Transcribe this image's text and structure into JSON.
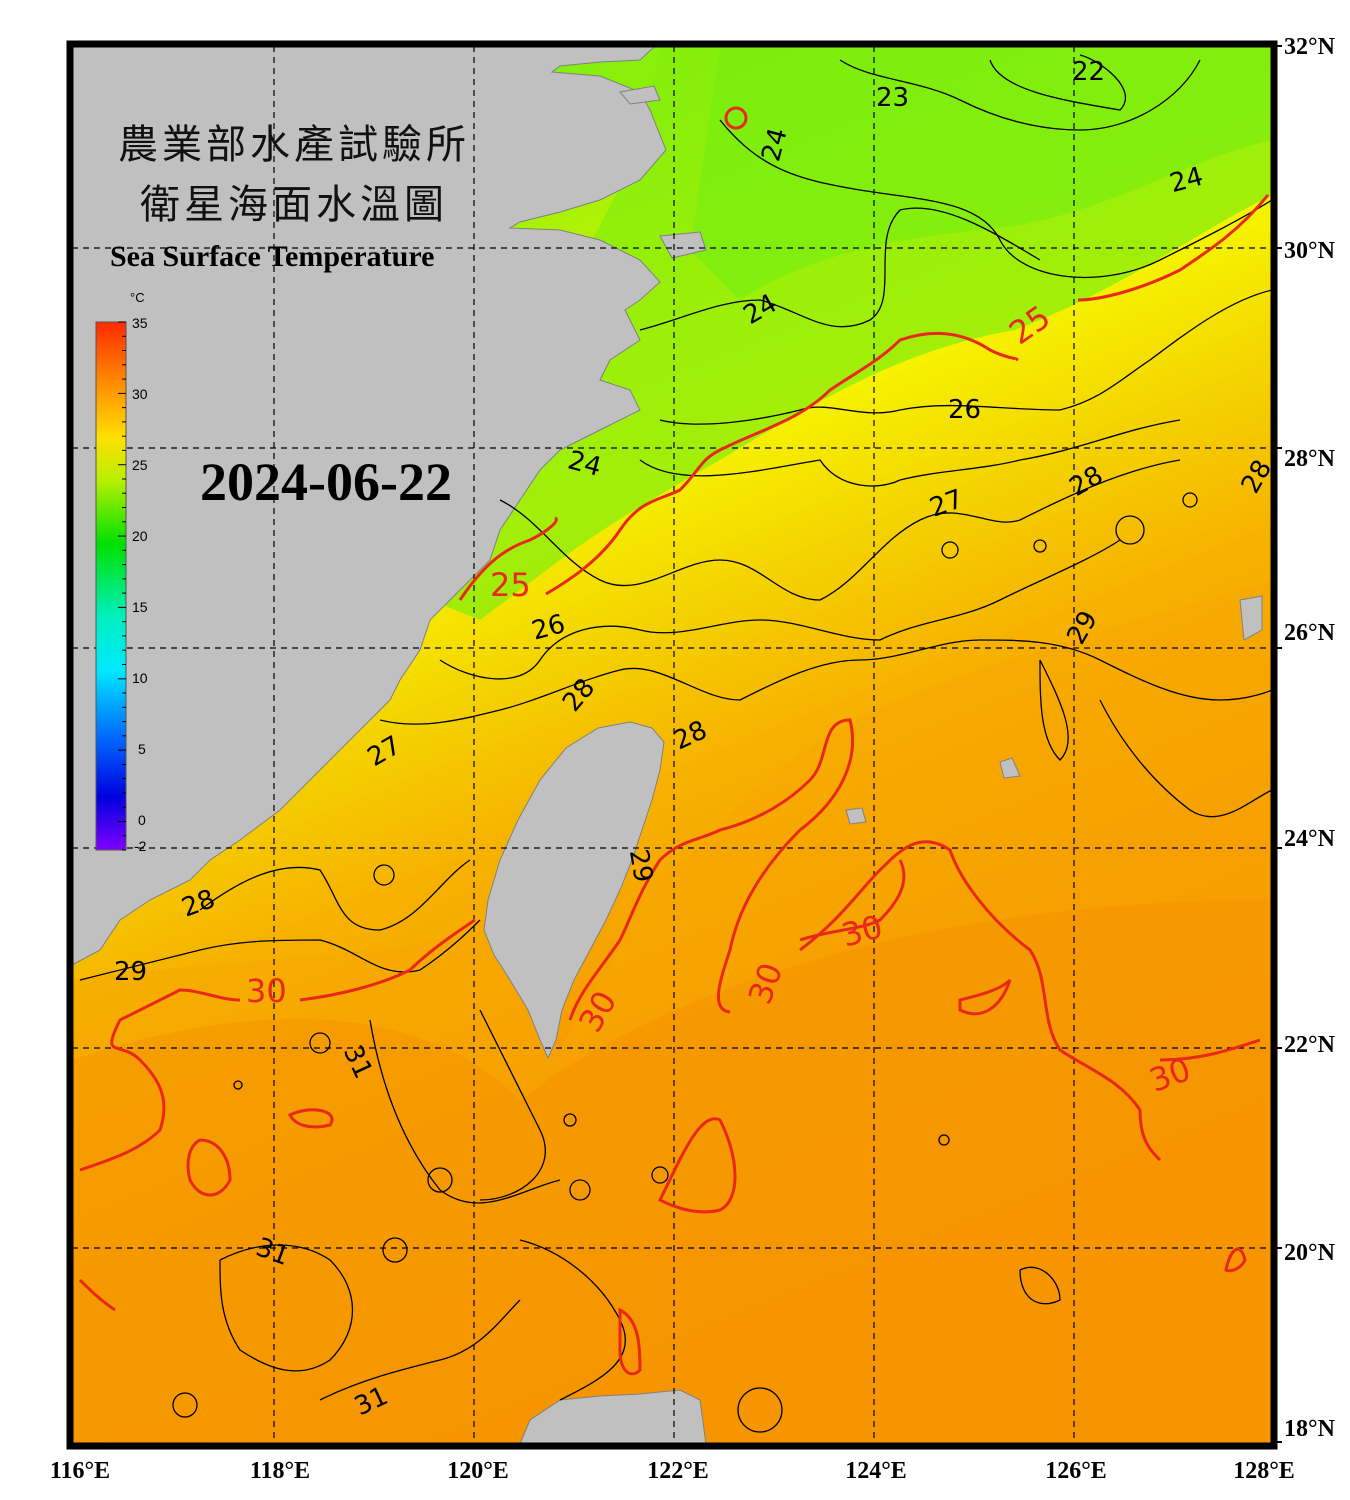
{
  "title": {
    "line1": "農業部水產試驗所",
    "line2": "衛星海面水溫圖",
    "english": "Sea Surface Temperature"
  },
  "date": "2024-06-22",
  "colorbar": {
    "unit": "°C",
    "ticks": [
      "35",
      "30",
      "25",
      "20",
      "15",
      "10",
      "5",
      "0",
      "-2"
    ],
    "min": -2,
    "max": 35
  },
  "axes": {
    "lon_labels": [
      "116°E",
      "118°E",
      "120°E",
      "122°E",
      "124°E",
      "126°E",
      "128°E"
    ],
    "lat_labels": [
      "32°N",
      "30°N",
      "28°N",
      "26°N",
      "24°N",
      "22°N",
      "20°N",
      "18°N"
    ],
    "lon_range": [
      116,
      128
    ],
    "lat_range": [
      18,
      32
    ]
  },
  "contour_labels": {
    "c22": "22",
    "c23": "23",
    "c24a": "24",
    "c24b": "24",
    "c24c": "24",
    "c24d": "24",
    "c25a": "25",
    "c25b": "25",
    "c26a": "26",
    "c26b": "26",
    "c27a": "27",
    "c27b": "27",
    "c28a": "28",
    "c28b": "28",
    "c28c": "28",
    "c28d": "28",
    "c28e": "28",
    "c29a": "29",
    "c29b": "29",
    "c29c": "29",
    "c30a": "30",
    "c30b": "30",
    "c30c": "30",
    "c30d": "30",
    "c30e": "30",
    "c31a": "31",
    "c31b": "31",
    "c31c": "31"
  },
  "colors": {
    "land": "#c0c0c0",
    "contour_main": "#e8281a",
    "contour_minor": "#000000",
    "frame": "#000000"
  }
}
